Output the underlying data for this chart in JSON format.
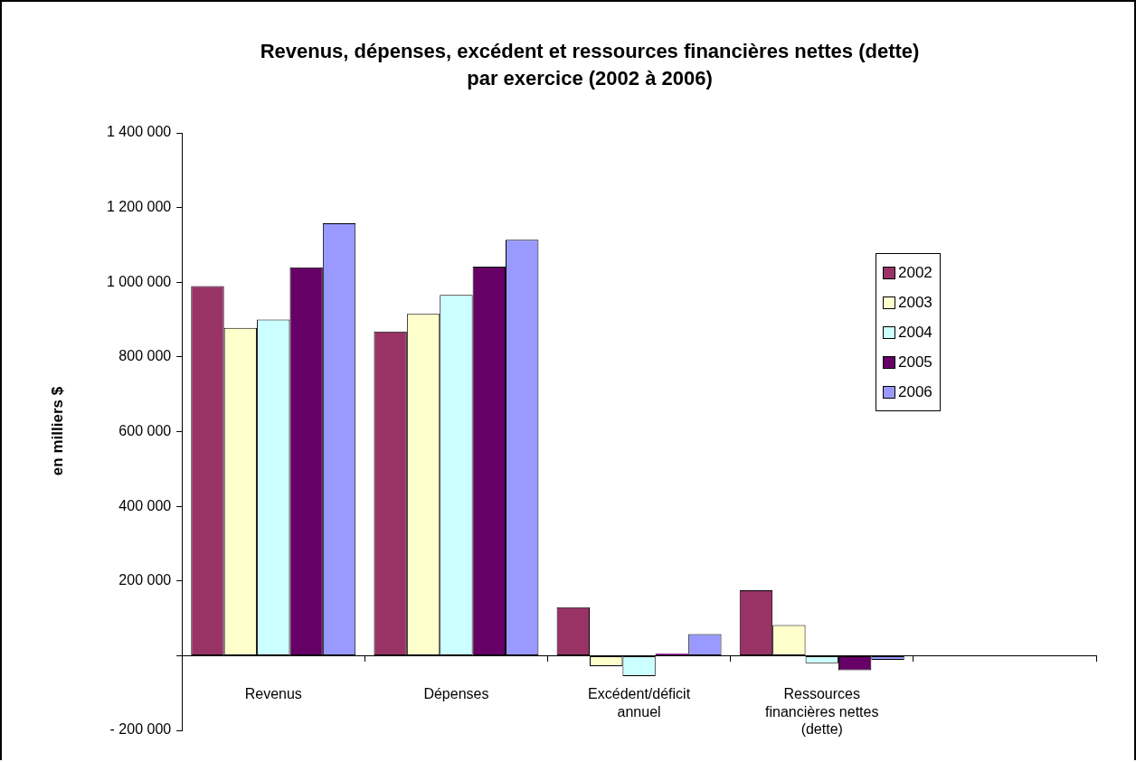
{
  "chart_data": {
    "type": "bar",
    "title": "Revenus, dépenses, excédent et ressources financières nettes (dette) par exercice (2002 à 2006)",
    "ylabel": "en milliers $",
    "categories": [
      "Revenus",
      "Dépenses",
      "Excédent/déficit annuel",
      "Ressources financières nettes (dette)",
      null
    ],
    "series": [
      {
        "name": "2002",
        "color": "#993366",
        "values": [
          990000,
          868000,
          130000,
          175000,
          null
        ]
      },
      {
        "name": "2003",
        "color": "#ffffcc",
        "values": [
          878000,
          915000,
          -28000,
          82000,
          null
        ]
      },
      {
        "name": "2004",
        "color": "#ccffff",
        "values": [
          900000,
          966000,
          -55000,
          -20000,
          null
        ]
      },
      {
        "name": "2005",
        "color": "#660066",
        "values": [
          1040000,
          1042000,
          5000,
          -39000,
          null
        ]
      },
      {
        "name": "2006",
        "color": "#9999ff",
        "values": [
          1158000,
          1114000,
          58000,
          -11000,
          null
        ]
      }
    ],
    "ylim": [
      -200000,
      1400000
    ],
    "yticks": [
      {
        "value": -200000,
        "label": "- 200 000"
      },
      {
        "value": 0,
        "label": null
      },
      {
        "value": 200000,
        "label": "200 000"
      },
      {
        "value": 400000,
        "label": "400 000"
      },
      {
        "value": 600000,
        "label": "600 000"
      },
      {
        "value": 800000,
        "label": "800 000"
      },
      {
        "value": 1000000,
        "label": "1 000 000"
      },
      {
        "value": 1200000,
        "label": "1 200 000"
      },
      {
        "value": 1400000,
        "label": "1 400 000"
      }
    ],
    "grid": false,
    "legend": "right"
  }
}
